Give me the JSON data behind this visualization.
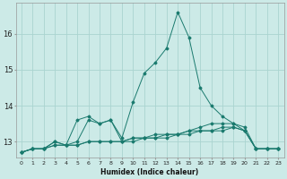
{
  "xlabel": "Humidex (Indice chaleur)",
  "bg_color": "#cceae7",
  "grid_color": "#aad4d0",
  "line_color": "#1a7a6e",
  "x": [
    0,
    1,
    2,
    3,
    4,
    5,
    6,
    7,
    8,
    9,
    10,
    11,
    12,
    13,
    14,
    15,
    16,
    17,
    18,
    19,
    20,
    21,
    22,
    23
  ],
  "series": [
    [
      12.7,
      12.8,
      12.8,
      12.9,
      12.9,
      12.9,
      13.0,
      13.0,
      13.0,
      13.0,
      13.0,
      13.1,
      13.1,
      13.1,
      13.2,
      13.2,
      13.3,
      13.3,
      13.3,
      13.4,
      13.3,
      12.8,
      12.8,
      12.8
    ],
    [
      12.7,
      12.8,
      12.8,
      12.9,
      12.9,
      12.9,
      13.0,
      13.0,
      13.0,
      13.0,
      13.1,
      13.1,
      13.2,
      13.2,
      13.2,
      13.3,
      13.4,
      13.5,
      13.5,
      13.5,
      13.4,
      12.8,
      12.8,
      12.8
    ],
    [
      12.7,
      12.8,
      12.8,
      13.0,
      12.9,
      13.0,
      13.6,
      13.5,
      13.6,
      13.0,
      13.1,
      13.1,
      13.1,
      13.2,
      13.2,
      13.3,
      13.3,
      13.3,
      13.4,
      13.4,
      13.3,
      12.8,
      12.8,
      12.8
    ],
    [
      12.7,
      12.8,
      12.8,
      13.0,
      12.9,
      13.6,
      13.7,
      13.5,
      13.6,
      13.1,
      14.1,
      14.9,
      15.2,
      15.6,
      16.6,
      15.9,
      14.5,
      14.0,
      13.7,
      13.5,
      13.3,
      12.8,
      12.8,
      12.8
    ]
  ],
  "ylim": [
    12.55,
    16.85
  ],
  "yticks": [
    13,
    14,
    15,
    16
  ],
  "xtick_labels": [
    "0",
    "1",
    "2",
    "3",
    "4",
    "5",
    "6",
    "7",
    "8",
    "9",
    "10",
    "11",
    "12",
    "13",
    "14",
    "15",
    "16",
    "17",
    "18",
    "19",
    "20",
    "21",
    "22",
    "23"
  ]
}
